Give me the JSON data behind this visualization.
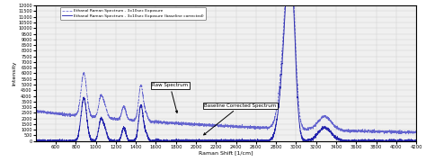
{
  "title": "",
  "xlabel": "Raman Shift [1/cm]",
  "ylabel": "Intensity",
  "xlim": [
    400,
    4200
  ],
  "ylim": [
    0,
    12000
  ],
  "ytick_min": 0,
  "ytick_max": 12000,
  "ytick_step": 500,
  "xticks": [
    600,
    800,
    1000,
    1200,
    1400,
    1600,
    1800,
    2000,
    2200,
    2400,
    2600,
    2800,
    3000,
    3200,
    3400,
    3600,
    3800,
    4000,
    4200
  ],
  "legend1": "Ethanol Raman Spectrum - 3x10sec Exposure",
  "legend2": "Ethanol Raman Spectrum - 3x10sec Exposure (baseline corrected)",
  "raw_color": "#5555cc",
  "baseline_color": "#1a1aaa",
  "annotation_raw": "Raw Spectrum",
  "annotation_baseline": "Baseline Corrected Spectrum",
  "background_color": "#f0f0f0",
  "grid_color": "#d0d0d0"
}
